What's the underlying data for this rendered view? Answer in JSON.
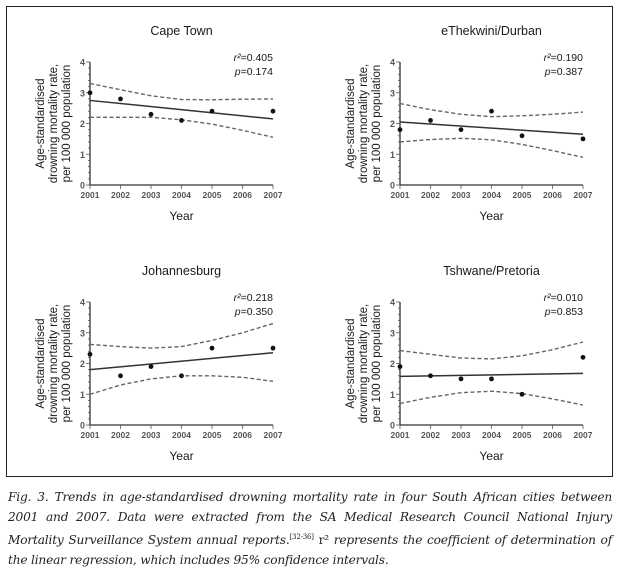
{
  "figure": {
    "caption": {
      "part1": "Fig. 3. Trends in age-standardised drowning mortality rate in four South African cities between 2001 and 2007. Data were extracted from the SA Medical Research Council National Injury Mortality Surveillance System annual reports.",
      "ref": "[32-36]",
      "r2_symbol": "r²",
      "part2": " represents the coefficient of determination of the linear regression, which includes 95% confidence intervals."
    }
  },
  "chart_data": [
    {
      "type": "scatter",
      "title": "Cape Town",
      "xlabel": "Year",
      "ylabel": [
        "Age-standardised",
        "drowning mortality rate,",
        "per 100 000 population"
      ],
      "x_ticks": [
        "2001",
        "2002",
        "2003",
        "2004",
        "2005",
        "2006",
        "2007"
      ],
      "y_ticks": [
        "0",
        "1",
        "2",
        "3",
        "4"
      ],
      "xlim": [
        2001,
        2007
      ],
      "ylim": [
        0,
        4
      ],
      "points": [
        {
          "x": 2001,
          "y": 3.0
        },
        {
          "x": 2002,
          "y": 2.8
        },
        {
          "x": 2003,
          "y": 2.3
        },
        {
          "x": 2004,
          "y": 2.1
        },
        {
          "x": 2005,
          "y": 2.4
        },
        {
          "x": 2007,
          "y": 2.4
        }
      ],
      "regression": [
        {
          "x": 2001,
          "y": 2.75
        },
        {
          "x": 2007,
          "y": 2.15
        }
      ],
      "ci_upper": [
        {
          "x": 2001,
          "y": 3.3
        },
        {
          "x": 2002,
          "y": 3.1
        },
        {
          "x": 2003,
          "y": 2.9
        },
        {
          "x": 2004,
          "y": 2.78
        },
        {
          "x": 2005,
          "y": 2.77
        },
        {
          "x": 2006,
          "y": 2.79
        },
        {
          "x": 2007,
          "y": 2.8
        }
      ],
      "ci_lower": [
        {
          "x": 2001,
          "y": 2.2
        },
        {
          "x": 2002,
          "y": 2.2
        },
        {
          "x": 2003,
          "y": 2.2
        },
        {
          "x": 2004,
          "y": 2.12
        },
        {
          "x": 2005,
          "y": 1.98
        },
        {
          "x": 2006,
          "y": 1.78
        },
        {
          "x": 2007,
          "y": 1.55
        }
      ],
      "r2_label": "r²=0.405",
      "p_label": "p=0.174"
    },
    {
      "type": "scatter",
      "title": "eThekwini/Durban",
      "xlabel": "Year",
      "ylabel": [
        "Age-standardised",
        "drowning mortality rate,",
        "per 100 000 population"
      ],
      "x_ticks": [
        "2001",
        "2002",
        "2003",
        "2004",
        "2005",
        "2006",
        "2007"
      ],
      "y_ticks": [
        "0",
        "1",
        "2",
        "3",
        "4"
      ],
      "xlim": [
        2001,
        2007
      ],
      "ylim": [
        0,
        4
      ],
      "points": [
        {
          "x": 2001,
          "y": 1.8
        },
        {
          "x": 2002,
          "y": 2.1
        },
        {
          "x": 2003,
          "y": 1.8
        },
        {
          "x": 2004,
          "y": 2.4
        },
        {
          "x": 2005,
          "y": 1.6
        },
        {
          "x": 2007,
          "y": 1.5
        }
      ],
      "regression": [
        {
          "x": 2001,
          "y": 2.05
        },
        {
          "x": 2007,
          "y": 1.65
        }
      ],
      "ci_upper": [
        {
          "x": 2001,
          "y": 2.65
        },
        {
          "x": 2002,
          "y": 2.45
        },
        {
          "x": 2003,
          "y": 2.3
        },
        {
          "x": 2004,
          "y": 2.22
        },
        {
          "x": 2005,
          "y": 2.25
        },
        {
          "x": 2006,
          "y": 2.3
        },
        {
          "x": 2007,
          "y": 2.37
        }
      ],
      "ci_lower": [
        {
          "x": 2001,
          "y": 1.4
        },
        {
          "x": 2002,
          "y": 1.48
        },
        {
          "x": 2003,
          "y": 1.52
        },
        {
          "x": 2004,
          "y": 1.47
        },
        {
          "x": 2005,
          "y": 1.32
        },
        {
          "x": 2006,
          "y": 1.12
        },
        {
          "x": 2007,
          "y": 0.9
        }
      ],
      "r2_label": "r²=0.190",
      "p_label": "p=0.387"
    },
    {
      "type": "scatter",
      "title": "Johannesburg",
      "xlabel": "Year",
      "ylabel": [
        "Age-standardised",
        "drowning mortality rate,",
        "per 100 000 population"
      ],
      "x_ticks": [
        "2001",
        "2002",
        "2003",
        "2004",
        "2005",
        "2006",
        "2007"
      ],
      "y_ticks": [
        "0",
        "1",
        "2",
        "3",
        "4"
      ],
      "xlim": [
        2001,
        2007
      ],
      "ylim": [
        0,
        4
      ],
      "points": [
        {
          "x": 2001,
          "y": 2.3
        },
        {
          "x": 2002,
          "y": 1.6
        },
        {
          "x": 2003,
          "y": 1.9
        },
        {
          "x": 2004,
          "y": 1.6
        },
        {
          "x": 2005,
          "y": 2.5
        },
        {
          "x": 2007,
          "y": 2.5
        }
      ],
      "regression": [
        {
          "x": 2001,
          "y": 1.8
        },
        {
          "x": 2007,
          "y": 2.35
        }
      ],
      "ci_upper": [
        {
          "x": 2001,
          "y": 2.62
        },
        {
          "x": 2002,
          "y": 2.55
        },
        {
          "x": 2003,
          "y": 2.5
        },
        {
          "x": 2004,
          "y": 2.55
        },
        {
          "x": 2005,
          "y": 2.75
        },
        {
          "x": 2006,
          "y": 3.0
        },
        {
          "x": 2007,
          "y": 3.3
        }
      ],
      "ci_lower": [
        {
          "x": 2001,
          "y": 1.0
        },
        {
          "x": 2002,
          "y": 1.3
        },
        {
          "x": 2003,
          "y": 1.5
        },
        {
          "x": 2004,
          "y": 1.6
        },
        {
          "x": 2005,
          "y": 1.6
        },
        {
          "x": 2006,
          "y": 1.55
        },
        {
          "x": 2007,
          "y": 1.42
        }
      ],
      "r2_label": "r²=0.218",
      "p_label": "p=0.350"
    },
    {
      "type": "scatter",
      "title": "Tshwane/Pretoria",
      "xlabel": "Year",
      "ylabel": [
        "Age-standardised",
        "drowning mortality rate,",
        "per 100 000 population"
      ],
      "x_ticks": [
        "2001",
        "2002",
        "2003",
        "2004",
        "2005",
        "2006",
        "2007"
      ],
      "y_ticks": [
        "0",
        "1",
        "2",
        "3",
        "4"
      ],
      "xlim": [
        2001,
        2007
      ],
      "ylim": [
        0,
        4
      ],
      "points": [
        {
          "x": 2001,
          "y": 1.9
        },
        {
          "x": 2002,
          "y": 1.6
        },
        {
          "x": 2003,
          "y": 1.5
        },
        {
          "x": 2004,
          "y": 1.5
        },
        {
          "x": 2005,
          "y": 1.0
        },
        {
          "x": 2007,
          "y": 2.2
        }
      ],
      "regression": [
        {
          "x": 2001,
          "y": 1.58
        },
        {
          "x": 2007,
          "y": 1.68
        }
      ],
      "ci_upper": [
        {
          "x": 2001,
          "y": 2.42
        },
        {
          "x": 2002,
          "y": 2.3
        },
        {
          "x": 2003,
          "y": 2.18
        },
        {
          "x": 2004,
          "y": 2.15
        },
        {
          "x": 2005,
          "y": 2.25
        },
        {
          "x": 2006,
          "y": 2.45
        },
        {
          "x": 2007,
          "y": 2.7
        }
      ],
      "ci_lower": [
        {
          "x": 2001,
          "y": 0.7
        },
        {
          "x": 2002,
          "y": 0.9
        },
        {
          "x": 2003,
          "y": 1.05
        },
        {
          "x": 2004,
          "y": 1.1
        },
        {
          "x": 2005,
          "y": 1.02
        },
        {
          "x": 2006,
          "y": 0.85
        },
        {
          "x": 2007,
          "y": 0.65
        }
      ],
      "r2_label": "r²=0.010",
      "p_label": "p=0.853"
    }
  ]
}
